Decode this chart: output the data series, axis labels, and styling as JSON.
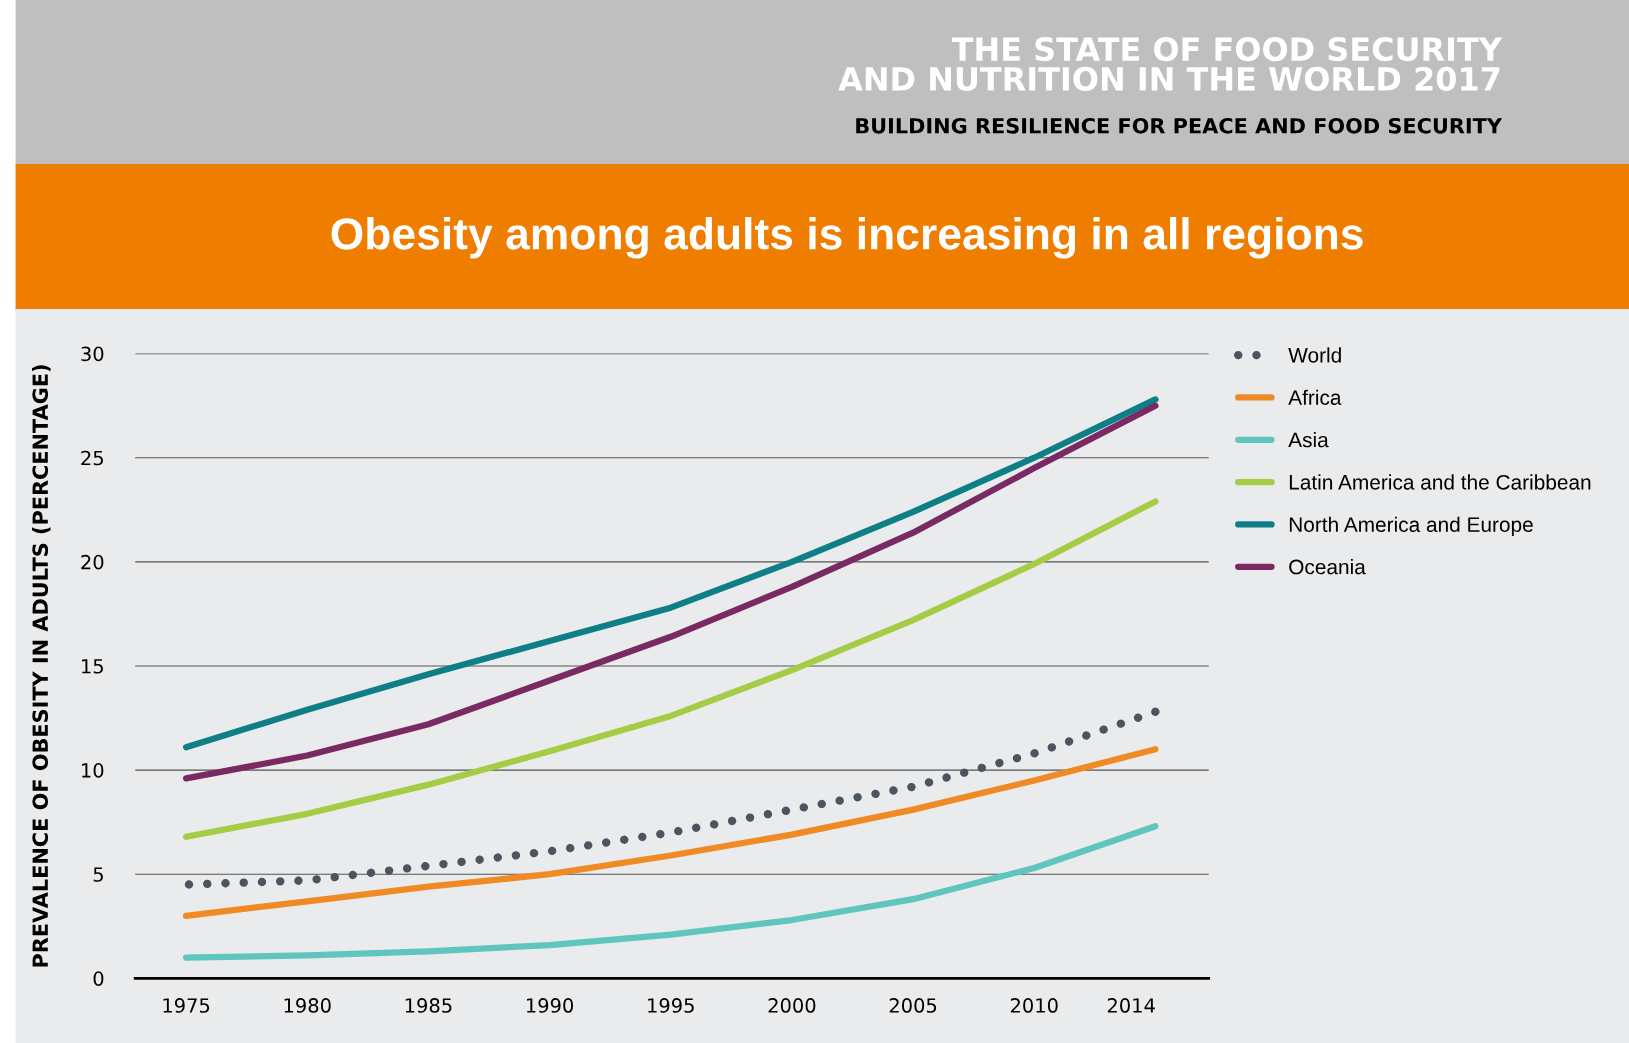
{
  "chart_data": {
    "type": "line",
    "title": "Obesity among adults is increasing in all regions",
    "ylabel": "PREVALENCE OF OBESITY IN ADULTS (PERCENTAGE)",
    "annotations": [
      "THE STATE OF FOOD SECURITY\nAND NUTRITION IN THE WORLD 2017",
      "BUILDING RESILIENCE FOR PEACE AND FOOD SECURITY"
    ],
    "x": [
      1975,
      1980,
      1985,
      1990,
      1995,
      2000,
      2005,
      2010,
      2015
    ],
    "series": [
      {
        "name": "World",
        "color": "#4a5560",
        "line_style": "dotted",
        "values": [
          4.5,
          4.7,
          5.4,
          6.1,
          7.0,
          8.1,
          9.2,
          10.8,
          12.8
        ]
      },
      {
        "name": "Africa",
        "color": "#f08a24",
        "values": [
          3.0,
          3.7,
          4.4,
          5.0,
          5.9,
          6.9,
          8.1,
          9.5,
          11.0
        ]
      },
      {
        "name": "Asia",
        "color": "#5ec6bd",
        "values": [
          1.0,
          1.1,
          1.3,
          1.6,
          2.1,
          2.8,
          3.8,
          5.3,
          7.3
        ]
      },
      {
        "name": "Latin America and the Caribbean",
        "color": "#a5cc45",
        "values": [
          6.8,
          7.9,
          9.3,
          10.9,
          12.6,
          14.8,
          17.2,
          19.9,
          22.9
        ]
      },
      {
        "name": "North America and Europe",
        "color": "#0e7f86",
        "values": [
          11.1,
          12.9,
          14.6,
          16.2,
          17.8,
          20.0,
          22.4,
          25.0,
          27.8
        ]
      },
      {
        "name": "Oceania",
        "color": "#7a2a63",
        "values": [
          9.6,
          10.7,
          12.2,
          14.3,
          16.4,
          18.8,
          21.4,
          24.5,
          27.5
        ]
      }
    ],
    "xlim": [
      1972.9,
      2017.2
    ],
    "xticks": [
      1975,
      1980,
      1985,
      1990,
      1995,
      2000,
      2005,
      2010,
      2014
    ],
    "ylim": [
      0,
      30
    ],
    "yticks": [
      0,
      5,
      10,
      15,
      20,
      25,
      30
    ],
    "grid": "y",
    "legend": "right",
    "marker": "none",
    "line_style": "solid"
  }
}
